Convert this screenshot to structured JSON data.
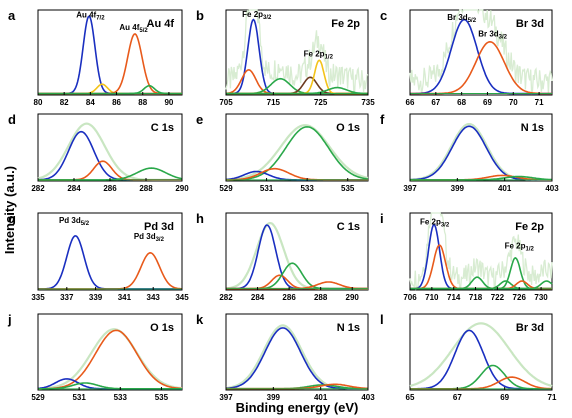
{
  "figure": {
    "ylabel": "Intensity (a.u.)",
    "xlabel": "Binding energy (eV)"
  },
  "colors": {
    "blue": "#1a2fc0",
    "orange": "#e85a1b",
    "green": "#2aa84a",
    "yellow": "#f3c31a",
    "brown": "#6b3a1f",
    "envelope": "#c9e6c2",
    "raw": "#d8ecd2"
  },
  "chart_data": [
    {
      "type": "line",
      "letter": "a",
      "title": "Au 4f",
      "xlim": [
        80,
        91
      ],
      "ticks": [
        80,
        82,
        84,
        86,
        88,
        90
      ],
      "ylim": [
        0,
        1.1
      ],
      "show_raw": false,
      "labels": [
        {
          "t": "Au 4f",
          "s": "7/2",
          "x": 84.0,
          "y": 1.03
        },
        {
          "t": "Au 4f",
          "s": "5/2",
          "x": 87.3,
          "y": 0.87
        }
      ],
      "series": [
        {
          "color": "blue",
          "center": 83.9,
          "height": 1.0,
          "width": 0.45
        },
        {
          "color": "yellow",
          "center": 84.9,
          "height": 0.12,
          "width": 0.4
        },
        {
          "color": "orange",
          "center": 87.4,
          "height": 0.77,
          "width": 0.55
        },
        {
          "color": "green",
          "center": 88.5,
          "height": 0.1,
          "width": 0.4
        }
      ]
    },
    {
      "type": "line",
      "letter": "b",
      "title": "Fe 2p",
      "xlim": [
        705,
        735
      ],
      "ticks": [
        705,
        715,
        725,
        735
      ],
      "ylim": [
        0,
        1.15
      ],
      "show_raw": true,
      "labels": [
        {
          "t": "Fe 2p",
          "s": "3/2",
          "x": 711.5,
          "y": 1.08
        },
        {
          "t": "Fe 2p",
          "s": "1/2",
          "x": 724.5,
          "y": 0.55
        }
      ],
      "series": [
        {
          "color": "blue",
          "center": 710.8,
          "height": 1.0,
          "width": 1.2
        },
        {
          "color": "orange",
          "center": 709.8,
          "height": 0.32,
          "width": 1.5
        },
        {
          "color": "green",
          "center": 716.5,
          "height": 0.2,
          "width": 2.0
        },
        {
          "color": "brown",
          "center": 722.8,
          "height": 0.22,
          "width": 1.4
        },
        {
          "color": "yellow",
          "center": 724.7,
          "height": 0.45,
          "width": 1.0
        },
        {
          "color": "green",
          "center": 728.5,
          "height": 0.08,
          "width": 2.0
        }
      ]
    },
    {
      "type": "line",
      "letter": "c",
      "title": "Br 3d",
      "xlim": [
        66,
        71.5
      ],
      "ticks": [
        66,
        67,
        68,
        69,
        70,
        71
      ],
      "ylim": [
        0,
        1.15
      ],
      "show_raw": true,
      "labels": [
        {
          "t": "Br 3d",
          "s": "5/2",
          "x": 68.0,
          "y": 1.04
        },
        {
          "t": "Br 3d",
          "s": "3/2",
          "x": 69.2,
          "y": 0.82
        }
      ],
      "series": [
        {
          "color": "blue",
          "center": 68.1,
          "height": 1.0,
          "width": 0.5
        },
        {
          "color": "orange",
          "center": 69.1,
          "height": 0.7,
          "width": 0.55
        }
      ]
    },
    {
      "type": "line",
      "letter": "d",
      "title": "C 1s",
      "xlim": [
        282,
        290
      ],
      "ticks": [
        282,
        284,
        286,
        288,
        290
      ],
      "ylim": [
        0,
        1.25
      ],
      "show_raw": false,
      "labels": [],
      "series": [
        {
          "color": "envelope",
          "center": 284.7,
          "height": 1.05,
          "width": 1.0
        },
        {
          "color": "blue",
          "center": 284.4,
          "height": 0.9,
          "width": 0.7
        },
        {
          "color": "orange",
          "center": 285.6,
          "height": 0.35,
          "width": 0.5
        },
        {
          "color": "green",
          "center": 288.3,
          "height": 0.22,
          "width": 0.8
        }
      ]
    },
    {
      "type": "line",
      "letter": "e",
      "title": "O 1s",
      "xlim": [
        529,
        536
      ],
      "ticks": [
        529,
        531,
        533,
        535
      ],
      "ylim": [
        0,
        1.2
      ],
      "show_raw": false,
      "labels": [],
      "series": [
        {
          "color": "envelope",
          "center": 532.9,
          "height": 0.98,
          "width": 1.2
        },
        {
          "color": "green",
          "center": 533.0,
          "height": 0.95,
          "width": 1.05
        },
        {
          "color": "blue",
          "center": 530.5,
          "height": 0.15,
          "width": 0.6
        },
        {
          "color": "orange",
          "center": 531.4,
          "height": 0.2,
          "width": 0.7
        }
      ]
    },
    {
      "type": "line",
      "letter": "f",
      "title": "N 1s",
      "xlim": [
        397,
        403
      ],
      "ticks": [
        397,
        399,
        401,
        403
      ],
      "ylim": [
        0,
        1.2
      ],
      "show_raw": false,
      "labels": [],
      "series": [
        {
          "color": "envelope",
          "center": 399.5,
          "height": 1.0,
          "width": 0.75
        },
        {
          "color": "blue",
          "center": 399.5,
          "height": 0.96,
          "width": 0.72
        },
        {
          "color": "orange",
          "center": 400.9,
          "height": 0.08,
          "width": 0.6
        },
        {
          "color": "green",
          "center": 401.6,
          "height": 0.06,
          "width": 0.6
        }
      ]
    },
    {
      "type": "line",
      "letter": "g",
      "title": "Pd 3d",
      "xlim": [
        335,
        345
      ],
      "ticks": [
        335,
        337,
        339,
        341,
        343,
        345
      ],
      "ylim": [
        0,
        1.45
      ],
      "show_raw": false,
      "labels": [
        {
          "t": "Pd 3d",
          "s": "5/2",
          "x": 337.5,
          "y": 1.3
        },
        {
          "t": "Pd 3d",
          "s": "3/2",
          "x": 342.7,
          "y": 1.0
        }
      ],
      "series": [
        {
          "color": "blue",
          "center": 337.6,
          "height": 1.0,
          "width": 0.6
        },
        {
          "color": "orange",
          "center": 342.8,
          "height": 0.68,
          "width": 0.65
        }
      ]
    },
    {
      "type": "line",
      "letter": "h",
      "title": "C 1s",
      "xlim": [
        282,
        291
      ],
      "ticks": [
        282,
        284,
        286,
        288,
        290
      ],
      "ylim": [
        0,
        1.15
      ],
      "show_raw": false,
      "labels": [],
      "series": [
        {
          "color": "envelope",
          "center": 284.8,
          "height": 0.98,
          "width": 0.85
        },
        {
          "color": "blue",
          "center": 284.6,
          "height": 0.95,
          "width": 0.55
        },
        {
          "color": "orange",
          "center": 285.4,
          "height": 0.2,
          "width": 0.5
        },
        {
          "color": "green",
          "center": 286.2,
          "height": 0.38,
          "width": 0.6
        },
        {
          "color": "orange",
          "center": 288.5,
          "height": 0.1,
          "width": 0.7
        }
      ]
    },
    {
      "type": "line",
      "letter": "i",
      "title": "Fe 2p",
      "xlim": [
        706,
        732
      ],
      "ticks": [
        706,
        710,
        714,
        718,
        722,
        726,
        730
      ],
      "ylim": [
        0,
        1.2
      ],
      "show_raw": true,
      "labels": [
        {
          "t": "Fe 2p",
          "s": "3/2",
          "x": 710.5,
          "y": 1.05
        },
        {
          "t": "Fe 2p",
          "s": "1/2",
          "x": 726.0,
          "y": 0.68
        }
      ],
      "series": [
        {
          "color": "blue",
          "center": 710.4,
          "height": 1.0,
          "width": 1.0
        },
        {
          "color": "orange",
          "center": 711.4,
          "height": 0.68,
          "width": 1.1
        },
        {
          "color": "green",
          "center": 718.3,
          "height": 0.18,
          "width": 1.0
        },
        {
          "color": "green",
          "center": 723.5,
          "height": 0.12,
          "width": 1.0
        },
        {
          "color": "green",
          "center": 725.3,
          "height": 0.48,
          "width": 0.9
        },
        {
          "color": "orange",
          "center": 726.5,
          "height": 0.12,
          "width": 1.0
        },
        {
          "color": "green",
          "center": 731.0,
          "height": 0.12,
          "width": 1.0
        }
      ]
    },
    {
      "type": "line",
      "letter": "j",
      "title": "O 1s",
      "xlim": [
        529,
        536
      ],
      "ticks": [
        529,
        531,
        533,
        535
      ],
      "ylim": [
        0,
        1.3
      ],
      "show_raw": false,
      "labels": [],
      "series": [
        {
          "color": "envelope",
          "center": 532.7,
          "height": 1.02,
          "width": 1.1
        },
        {
          "color": "orange",
          "center": 532.8,
          "height": 1.0,
          "width": 1.0
        },
        {
          "color": "blue",
          "center": 530.4,
          "height": 0.17,
          "width": 0.55
        },
        {
          "color": "green",
          "center": 531.3,
          "height": 0.1,
          "width": 0.6
        }
      ]
    },
    {
      "type": "line",
      "letter": "k",
      "title": "N 1s",
      "xlim": [
        397,
        403
      ],
      "ticks": [
        397,
        399,
        401,
        403
      ],
      "ylim": [
        0,
        1.2
      ],
      "show_raw": false,
      "labels": [],
      "series": [
        {
          "color": "envelope",
          "center": 399.4,
          "height": 1.0,
          "width": 0.8
        },
        {
          "color": "blue",
          "center": 399.4,
          "height": 0.96,
          "width": 0.75
        },
        {
          "color": "green",
          "center": 401.1,
          "height": 0.06,
          "width": 0.6
        },
        {
          "color": "orange",
          "center": 401.6,
          "height": 0.07,
          "width": 0.6
        }
      ]
    },
    {
      "type": "line",
      "letter": "l",
      "title": "Br 3d",
      "xlim": [
        65,
        71
      ],
      "ticks": [
        65,
        67,
        69,
        71
      ],
      "ylim": [
        0,
        1.3
      ],
      "show_raw": false,
      "labels": [],
      "series": [
        {
          "color": "envelope",
          "center": 68.0,
          "height": 1.12,
          "width": 1.2
        },
        {
          "color": "blue",
          "center": 67.5,
          "height": 1.0,
          "width": 0.6
        },
        {
          "color": "green",
          "center": 68.5,
          "height": 0.4,
          "width": 0.5
        },
        {
          "color": "orange",
          "center": 69.3,
          "height": 0.2,
          "width": 0.55
        }
      ]
    }
  ]
}
